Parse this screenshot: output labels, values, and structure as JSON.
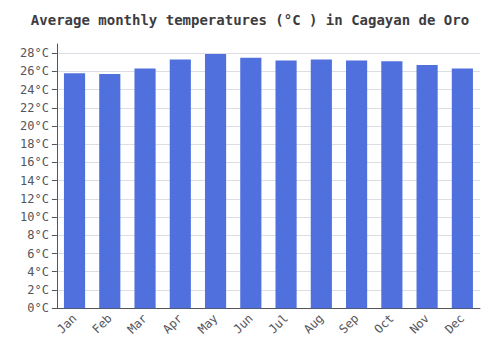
{
  "chart_data": {
    "type": "bar",
    "title": "Average monthly temperatures (°C ) in Cagayan de Oro",
    "categories": [
      "Jan",
      "Feb",
      "Mar",
      "Apr",
      "May",
      "Jun",
      "Jul",
      "Aug",
      "Sep",
      "Oct",
      "Nov",
      "Dec"
    ],
    "values": [
      25.8,
      25.7,
      26.3,
      27.3,
      27.9,
      27.5,
      27.2,
      27.3,
      27.2,
      27.1,
      26.7,
      26.3
    ],
    "ylim": [
      0,
      29
    ],
    "yticks": [
      {
        "value": 0,
        "label": "0°C"
      },
      {
        "value": 2,
        "label": "2°C"
      },
      {
        "value": 4,
        "label": "4°C"
      },
      {
        "value": 6,
        "label": "6°C"
      },
      {
        "value": 8,
        "label": "8°C"
      },
      {
        "value": 10,
        "label": "10°C"
      },
      {
        "value": 12,
        "label": "12°C"
      },
      {
        "value": 14,
        "label": "14°C"
      },
      {
        "value": 16,
        "label": "16°C"
      },
      {
        "value": 18,
        "label": "18°C"
      },
      {
        "value": 20,
        "label": "20°C"
      },
      {
        "value": 22,
        "label": "22°C"
      },
      {
        "value": 24,
        "label": "24°C"
      },
      {
        "value": 26,
        "label": "26°C"
      },
      {
        "value": 28,
        "label": "28°C"
      }
    ],
    "grid": true
  }
}
